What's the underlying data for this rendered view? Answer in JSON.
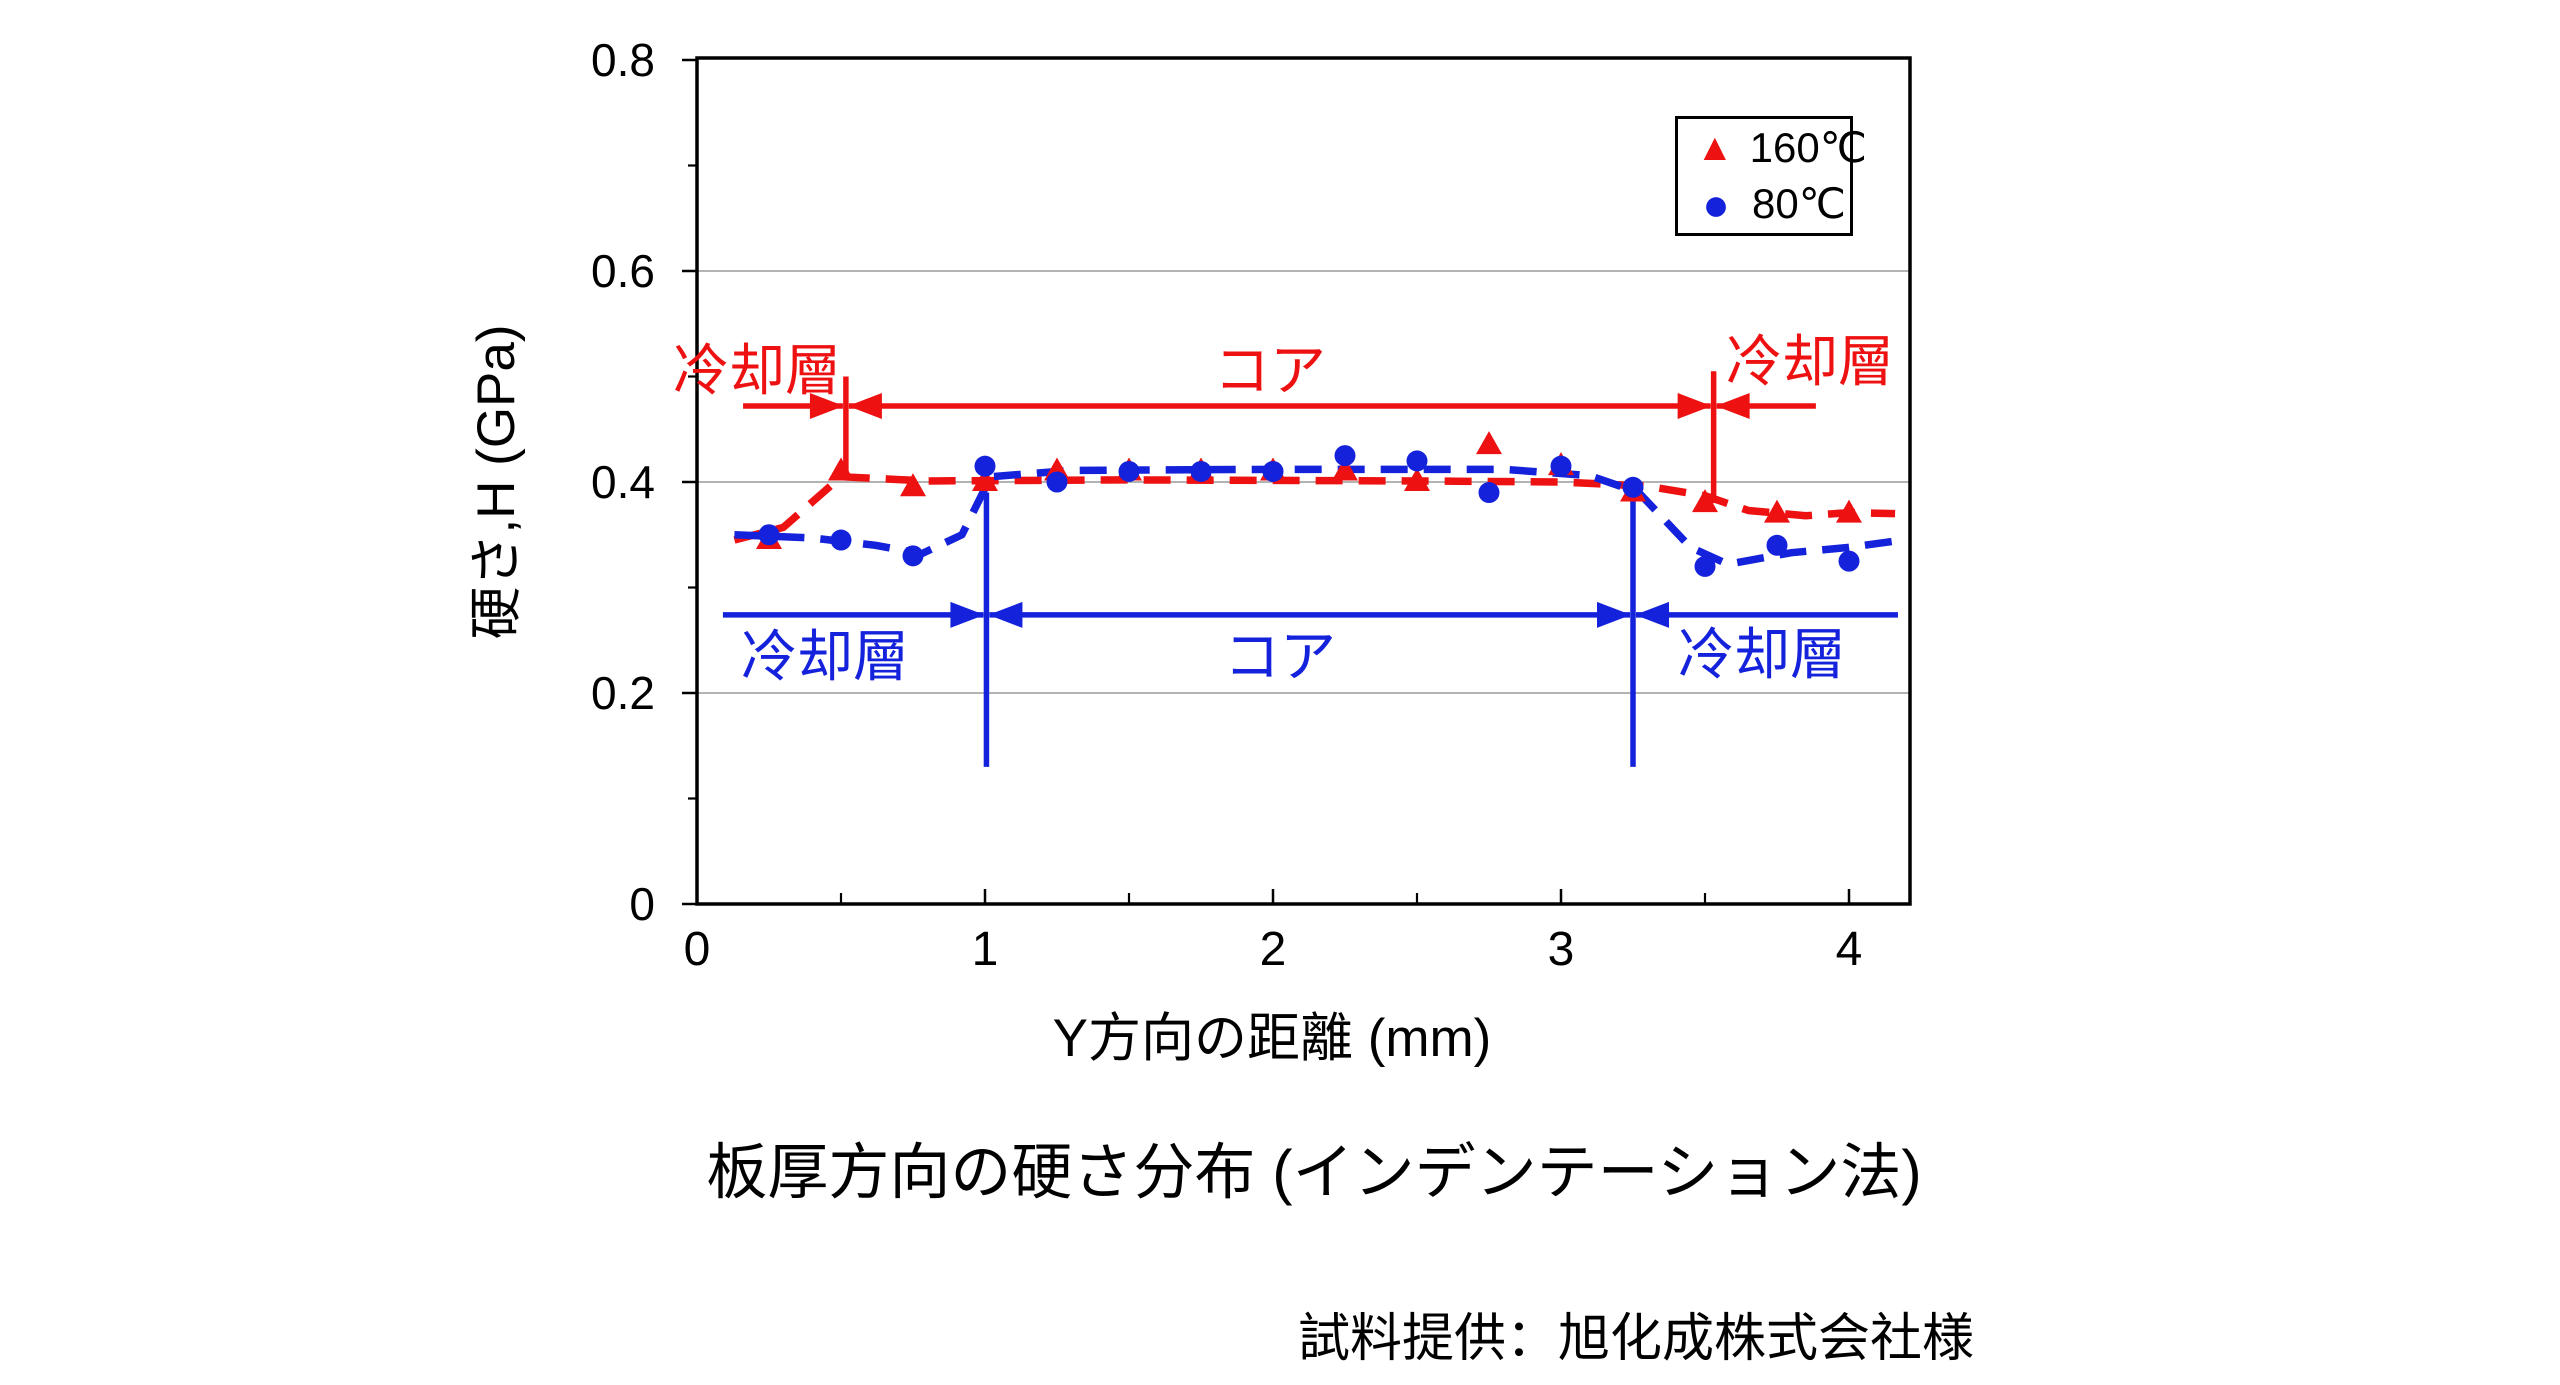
{
  "figure": {
    "title": "板厚方向の硬さ分布 (インデンテーション法)",
    "credit": "試料提供：旭化成株式会社様"
  },
  "chart_data": {
    "type": "scatter",
    "xlabel": "Y方向の距離 (mm)",
    "ylabel": "硬さ,H (GPa)",
    "xlim": [
      0,
      4.21
    ],
    "ylim": [
      0,
      0.8
    ],
    "xticks": [
      0,
      1,
      2,
      3,
      4
    ],
    "xtick_labels": [
      "0",
      "1",
      "2",
      "3",
      "4"
    ],
    "xticks_minor": [
      0.5,
      1.5,
      2.5,
      3.5
    ],
    "yticks": [
      0.8,
      0.6,
      0.4,
      0.2,
      0
    ],
    "ytick_labels": [
      "0.8",
      "0.6",
      "0.4",
      "0.2",
      "0"
    ],
    "yticks_minor": [
      0.1,
      0.3,
      0.5,
      0.7
    ],
    "gridlines_y": [
      0.2,
      0.4,
      0.6
    ],
    "grid": "horizontal",
    "legend_position": "top-right",
    "colors": {
      "red": "#ee1111",
      "blue": "#1522dc",
      "grid": "#a8a8a8",
      "frame": "#000000"
    },
    "legend": {
      "entries": [
        {
          "label": "160℃",
          "marker": "triangle",
          "color": "#ee1111"
        },
        {
          "label": "80℃",
          "marker": "circle",
          "color": "#1522dc"
        }
      ]
    },
    "series": [
      {
        "name": "160℃",
        "marker": "triangle",
        "color": "#ee1111",
        "linestyle": "dashed",
        "x": [
          0.25,
          0.5,
          0.75,
          1.0,
          1.25,
          1.5,
          1.75,
          2.0,
          2.25,
          2.5,
          2.75,
          3.0,
          3.25,
          3.5,
          3.75,
          4.0
        ],
        "y": [
          0.345,
          0.41,
          0.395,
          0.4,
          0.41,
          0.41,
          0.41,
          0.41,
          0.41,
          0.4,
          0.435,
          0.415,
          0.39,
          0.38,
          0.37,
          0.37
        ],
        "trend": [
          [
            0.13,
            0.345
          ],
          [
            0.3,
            0.357
          ],
          [
            0.5,
            0.405
          ],
          [
            0.8,
            0.401
          ],
          [
            1.5,
            0.402
          ],
          [
            2.5,
            0.401
          ],
          [
            3.0,
            0.4
          ],
          [
            3.3,
            0.396
          ],
          [
            3.5,
            0.387
          ],
          [
            3.65,
            0.373
          ],
          [
            3.85,
            0.368
          ],
          [
            4.0,
            0.371
          ],
          [
            4.16,
            0.37
          ]
        ]
      },
      {
        "name": "80℃",
        "marker": "circle",
        "color": "#1522dc",
        "linestyle": "dashed",
        "x": [
          0.25,
          0.5,
          0.75,
          1.0,
          1.25,
          1.5,
          1.75,
          2.0,
          2.25,
          2.5,
          2.75,
          3.0,
          3.25,
          3.5,
          3.75,
          4.0
        ],
        "y": [
          0.35,
          0.345,
          0.33,
          0.415,
          0.4,
          0.41,
          0.41,
          0.41,
          0.425,
          0.42,
          0.39,
          0.415,
          0.395,
          0.32,
          0.34,
          0.325
        ],
        "trend": [
          [
            0.13,
            0.35
          ],
          [
            0.4,
            0.347
          ],
          [
            0.62,
            0.34
          ],
          [
            0.78,
            0.332
          ],
          [
            0.92,
            0.35
          ],
          [
            1.02,
            0.405
          ],
          [
            1.3,
            0.411
          ],
          [
            2.0,
            0.412
          ],
          [
            2.8,
            0.412
          ],
          [
            3.1,
            0.406
          ],
          [
            3.27,
            0.39
          ],
          [
            3.45,
            0.338
          ],
          [
            3.58,
            0.322
          ],
          [
            3.8,
            0.333
          ],
          [
            4.0,
            0.338
          ],
          [
            4.16,
            0.344
          ]
        ]
      }
    ],
    "annotations": [
      {
        "name": "160C-layer-spans",
        "color": "#ee1111",
        "line_y_gpa": 0.472,
        "x_start_mm": 0.16,
        "x_end_mm": 3.885,
        "boundaries_mm": [
          0.517,
          3.53
        ],
        "verticals": [
          {
            "x": 0.517,
            "from": 0.5,
            "to": 0.404
          },
          {
            "x": 3.53,
            "from": 0.505,
            "to": 0.38
          }
        ],
        "labels": [
          {
            "text": "冷却層",
            "x_mm": 0.21
          },
          {
            "text": "コア",
            "x_mm": 2.0
          },
          {
            "text": "冷却層",
            "x_mm": 3.87
          }
        ]
      },
      {
        "name": "80C-layer-spans",
        "color": "#1522dc",
        "line_y_gpa": 0.274,
        "x_start_mm": 0.09,
        "x_end_mm": 4.17,
        "boundaries_mm": [
          1.005,
          3.25
        ],
        "verticals": [
          {
            "x": 1.005,
            "from": 0.39,
            "to": 0.13
          },
          {
            "x": 3.25,
            "from": 0.383,
            "to": 0.13
          }
        ],
        "labels": [
          {
            "text": "冷却層",
            "x_mm": 0.45
          },
          {
            "text": "コア",
            "x_mm": 2.03
          },
          {
            "text": "冷却層",
            "x_mm": 3.7
          }
        ]
      }
    ]
  }
}
